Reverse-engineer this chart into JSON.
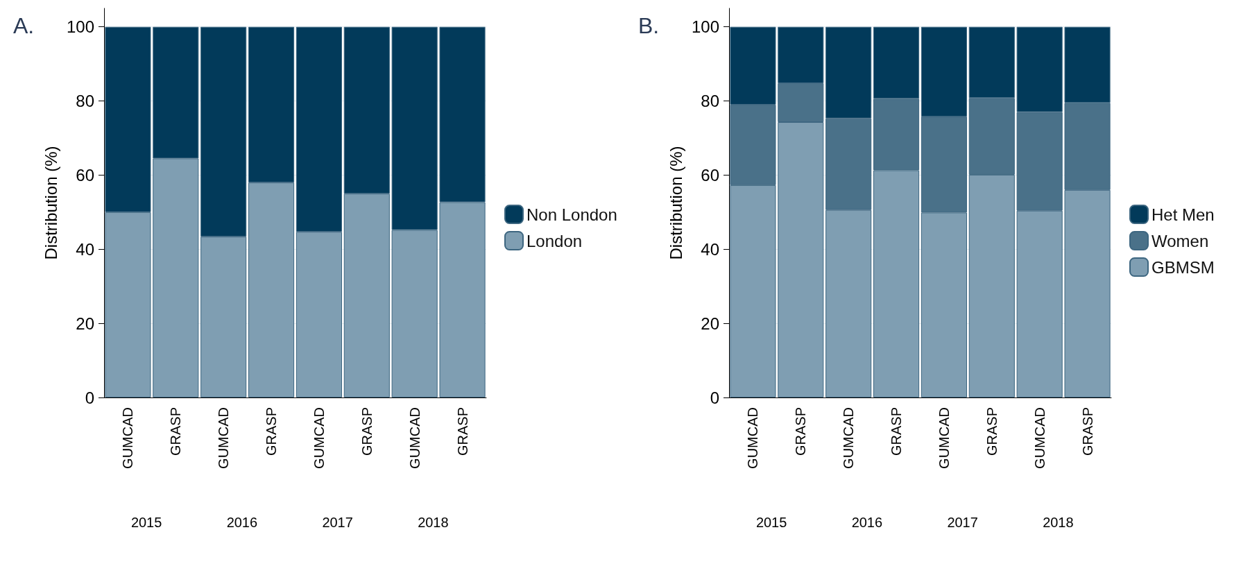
{
  "chart_data": [
    {
      "type": "bar",
      "title": "A.",
      "ylabel": "Distribution (%)",
      "categories": [
        "GUMCAD",
        "GRASP",
        "GUMCAD",
        "GRASP",
        "GUMCAD",
        "GRASP",
        "GUMCAD",
        "GRASP"
      ],
      "stacked": true,
      "ylim": [
        0,
        105
      ],
      "yticks": [
        0,
        20,
        40,
        60,
        80,
        100
      ],
      "grid": "y",
      "legend": "right",
      "annotations": [
        "2015",
        "2016",
        "2017",
        "2018"
      ],
      "series": [
        {
          "name": "London",
          "color": "#7f9eb2",
          "values": [
            50,
            64.5,
            43.4,
            58,
            44.7,
            55,
            45.2,
            52.7
          ]
        },
        {
          "name": "Non London",
          "color": "#023a5a",
          "values": [
            50,
            35.5,
            56.6,
            42,
            55.3,
            45,
            54.8,
            47.3
          ]
        }
      ]
    },
    {
      "type": "bar",
      "title": "B.",
      "ylabel": "Distribution (%)",
      "categories": [
        "GUMCAD",
        "GRASP",
        "GUMCAD",
        "GRASP",
        "GUMCAD",
        "GRASP",
        "GUMCAD",
        "GRASP"
      ],
      "stacked": true,
      "ylim": [
        0,
        105
      ],
      "yticks": [
        0,
        20,
        40,
        60,
        80,
        100
      ],
      "grid": "y",
      "legend": "right",
      "annotations": [
        "2015",
        "2016",
        "2017",
        "2018"
      ],
      "series": [
        {
          "name": "GBMSM",
          "color": "#7f9eb2",
          "values": [
            57.3,
            74.3,
            50.6,
            61.3,
            49.9,
            60.1,
            50.4,
            56
          ]
        },
        {
          "name": "Women",
          "color": "#4a7189",
          "values": [
            21.7,
            10.5,
            24.7,
            19.3,
            25.9,
            20.7,
            26.6,
            23.5
          ]
        },
        {
          "name": "Het Men",
          "color": "#023a5a",
          "values": [
            21,
            15.2,
            24.7,
            19.4,
            24.2,
            19.2,
            23,
            20.5
          ]
        }
      ]
    }
  ]
}
